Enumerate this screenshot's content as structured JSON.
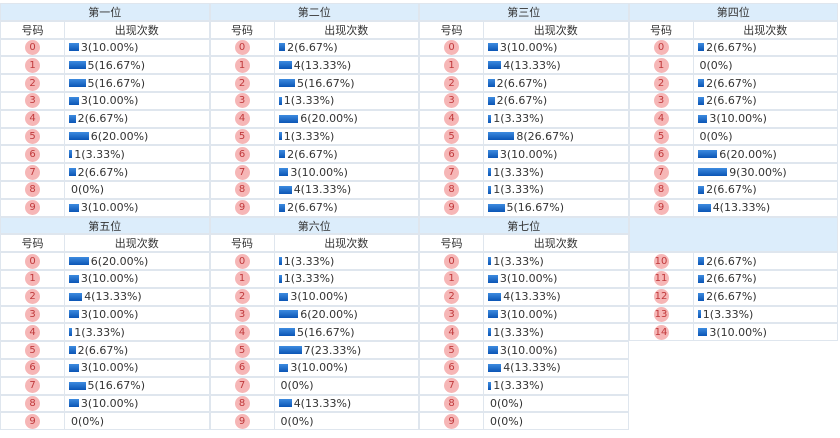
{
  "sections": [
    {
      "title": "第一位",
      "head_num": "号码",
      "head_count": "出现次数",
      "rows": [
        {
          "num": "0",
          "count": 3,
          "label": "3(10.00%)"
        },
        {
          "num": "1",
          "count": 5,
          "label": "5(16.67%)"
        },
        {
          "num": "2",
          "count": 5,
          "label": "5(16.67%)"
        },
        {
          "num": "3",
          "count": 3,
          "label": "3(10.00%)"
        },
        {
          "num": "4",
          "count": 2,
          "label": "2(6.67%)"
        },
        {
          "num": "5",
          "count": 6,
          "label": "6(20.00%)"
        },
        {
          "num": "6",
          "count": 1,
          "label": "1(3.33%)"
        },
        {
          "num": "7",
          "count": 2,
          "label": "2(6.67%)"
        },
        {
          "num": "8",
          "count": 0,
          "label": "0(0%)"
        },
        {
          "num": "9",
          "count": 3,
          "label": "3(10.00%)"
        }
      ]
    },
    {
      "title": "第二位",
      "head_num": "号码",
      "head_count": "出现次数",
      "rows": [
        {
          "num": "0",
          "count": 2,
          "label": "2(6.67%)"
        },
        {
          "num": "1",
          "count": 4,
          "label": "4(13.33%)"
        },
        {
          "num": "2",
          "count": 5,
          "label": "5(16.67%)"
        },
        {
          "num": "3",
          "count": 1,
          "label": "1(3.33%)"
        },
        {
          "num": "4",
          "count": 6,
          "label": "6(20.00%)"
        },
        {
          "num": "5",
          "count": 1,
          "label": "1(3.33%)"
        },
        {
          "num": "6",
          "count": 2,
          "label": "2(6.67%)"
        },
        {
          "num": "7",
          "count": 3,
          "label": "3(10.00%)"
        },
        {
          "num": "8",
          "count": 4,
          "label": "4(13.33%)"
        },
        {
          "num": "9",
          "count": 2,
          "label": "2(6.67%)"
        }
      ]
    },
    {
      "title": "第三位",
      "head_num": "号码",
      "head_count": "出现次数",
      "rows": [
        {
          "num": "0",
          "count": 3,
          "label": "3(10.00%)"
        },
        {
          "num": "1",
          "count": 4,
          "label": "4(13.33%)"
        },
        {
          "num": "2",
          "count": 2,
          "label": "2(6.67%)"
        },
        {
          "num": "3",
          "count": 2,
          "label": "2(6.67%)"
        },
        {
          "num": "4",
          "count": 1,
          "label": "1(3.33%)"
        },
        {
          "num": "5",
          "count": 8,
          "label": "8(26.67%)"
        },
        {
          "num": "6",
          "count": 3,
          "label": "3(10.00%)"
        },
        {
          "num": "7",
          "count": 1,
          "label": "1(3.33%)"
        },
        {
          "num": "8",
          "count": 1,
          "label": "1(3.33%)"
        },
        {
          "num": "9",
          "count": 5,
          "label": "5(16.67%)"
        }
      ]
    },
    {
      "title": "第四位",
      "head_num": "号码",
      "head_count": "出现次数",
      "rows": [
        {
          "num": "0",
          "count": 2,
          "label": "2(6.67%)"
        },
        {
          "num": "1",
          "count": 0,
          "label": "0(0%)"
        },
        {
          "num": "2",
          "count": 2,
          "label": "2(6.67%)"
        },
        {
          "num": "3",
          "count": 2,
          "label": "2(6.67%)"
        },
        {
          "num": "4",
          "count": 3,
          "label": "3(10.00%)"
        },
        {
          "num": "5",
          "count": 0,
          "label": "0(0%)"
        },
        {
          "num": "6",
          "count": 6,
          "label": "6(20.00%)"
        },
        {
          "num": "7",
          "count": 9,
          "label": "9(30.00%)"
        },
        {
          "num": "8",
          "count": 2,
          "label": "2(6.67%)"
        },
        {
          "num": "9",
          "count": 4,
          "label": "4(13.33%)"
        }
      ]
    },
    {
      "title": "第五位",
      "head_num": "号码",
      "head_count": "出现次数",
      "rows": [
        {
          "num": "0",
          "count": 6,
          "label": "6(20.00%)"
        },
        {
          "num": "1",
          "count": 3,
          "label": "3(10.00%)"
        },
        {
          "num": "2",
          "count": 4,
          "label": "4(13.33%)"
        },
        {
          "num": "3",
          "count": 3,
          "label": "3(10.00%)"
        },
        {
          "num": "4",
          "count": 1,
          "label": "1(3.33%)"
        },
        {
          "num": "5",
          "count": 2,
          "label": "2(6.67%)"
        },
        {
          "num": "6",
          "count": 3,
          "label": "3(10.00%)"
        },
        {
          "num": "7",
          "count": 5,
          "label": "5(16.67%)"
        },
        {
          "num": "8",
          "count": 3,
          "label": "3(10.00%)"
        },
        {
          "num": "9",
          "count": 0,
          "label": "0(0%)"
        }
      ]
    },
    {
      "title": "第六位",
      "head_num": "号码",
      "head_count": "出现次数",
      "rows": [
        {
          "num": "0",
          "count": 1,
          "label": "1(3.33%)"
        },
        {
          "num": "1",
          "count": 1,
          "label": "1(3.33%)"
        },
        {
          "num": "2",
          "count": 3,
          "label": "3(10.00%)"
        },
        {
          "num": "3",
          "count": 6,
          "label": "6(20.00%)"
        },
        {
          "num": "4",
          "count": 5,
          "label": "5(16.67%)"
        },
        {
          "num": "5",
          "count": 7,
          "label": "7(23.33%)"
        },
        {
          "num": "6",
          "count": 3,
          "label": "3(10.00%)"
        },
        {
          "num": "7",
          "count": 0,
          "label": "0(0%)"
        },
        {
          "num": "8",
          "count": 4,
          "label": "4(13.33%)"
        },
        {
          "num": "9",
          "count": 0,
          "label": "0(0%)"
        }
      ]
    },
    {
      "title": "第七位",
      "head_num": "号码",
      "head_count": "出现次数",
      "rows": [
        {
          "num": "0",
          "count": 1,
          "label": "1(3.33%)"
        },
        {
          "num": "1",
          "count": 3,
          "label": "3(10.00%)"
        },
        {
          "num": "2",
          "count": 4,
          "label": "4(13.33%)"
        },
        {
          "num": "3",
          "count": 3,
          "label": "3(10.00%)"
        },
        {
          "num": "4",
          "count": 1,
          "label": "1(3.33%)"
        },
        {
          "num": "5",
          "count": 3,
          "label": "3(10.00%)"
        },
        {
          "num": "6",
          "count": 4,
          "label": "4(13.33%)"
        },
        {
          "num": "7",
          "count": 1,
          "label": "1(3.33%)"
        },
        {
          "num": "8",
          "count": 0,
          "label": "0(0%)"
        },
        {
          "num": "9",
          "count": 0,
          "label": "0(0%)"
        }
      ]
    }
  ],
  "extra_rows": [
    {
      "num": "10",
      "count": 2,
      "label": "2(6.67%)"
    },
    {
      "num": "11",
      "count": 2,
      "label": "2(6.67%)"
    },
    {
      "num": "12",
      "count": 2,
      "label": "2(6.67%)"
    },
    {
      "num": "13",
      "count": 1,
      "label": "1(3.33%)"
    },
    {
      "num": "14",
      "count": 3,
      "label": "3(10.00%)"
    }
  ]
}
